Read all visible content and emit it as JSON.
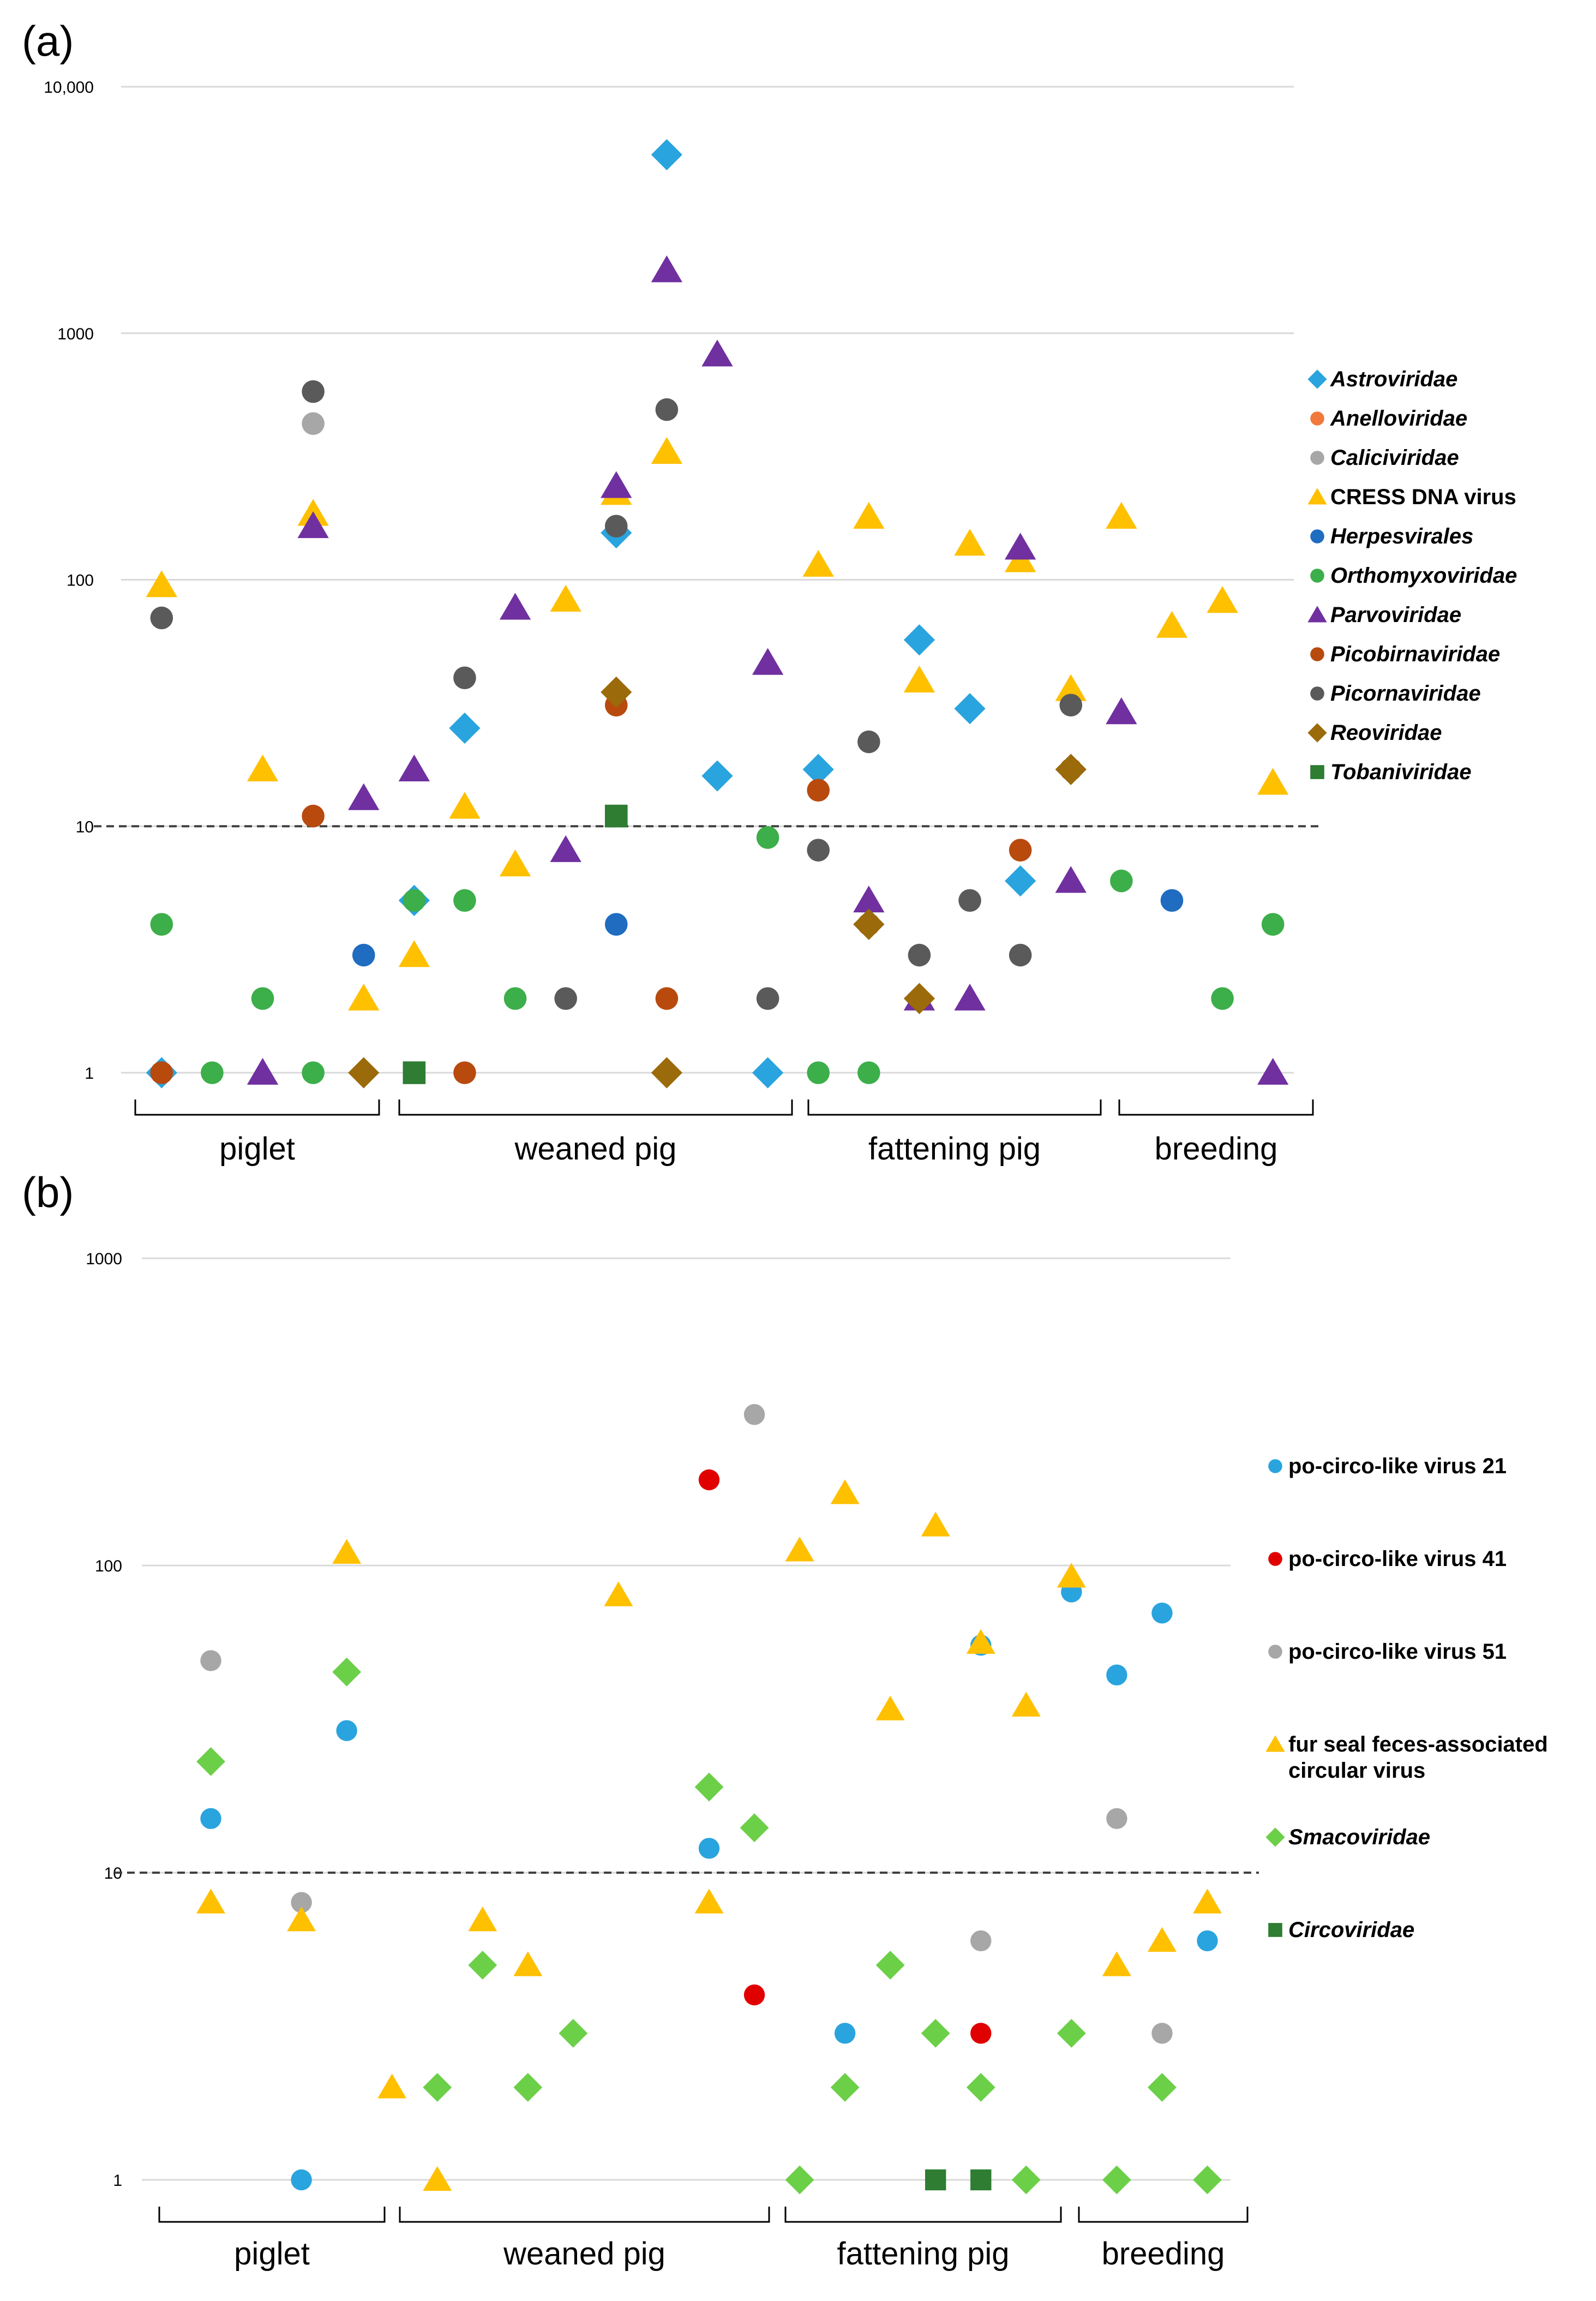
{
  "colors": {
    "astro": "#2aa4de",
    "anello": "#f07a3c",
    "calici": "#a7a7a7",
    "cress": "#ffc000",
    "herpes": "#1f6cc0",
    "ortho": "#3cae4a",
    "parvo": "#7030a0",
    "picobirna": "#b84a0e",
    "picorna": "#5a5a5a",
    "reo": "#9b6a0a",
    "tobani": "#2e7d32",
    "circo21": "#2aa4de",
    "circo41": "#e00000",
    "circo51": "#a7a7a7",
    "furseal": "#ffc000",
    "smaco": "#6ccf48",
    "circov": "#2e7d32"
  },
  "chart_data": [
    {
      "type": "scatter",
      "panel_label": "(a)",
      "yscale": "log",
      "ylim": [
        1,
        10000
      ],
      "yticks": [
        1,
        10,
        100,
        1000,
        10000
      ],
      "ytick_labels": [
        "1",
        "10",
        "100",
        "1000",
        "10,000"
      ],
      "threshold": 10,
      "xlim": [
        0.5,
        23.5
      ],
      "groups": [
        {
          "label": "piglet",
          "from": 1,
          "to": 5
        },
        {
          "label": "weaned pig",
          "from": 6,
          "to": 13
        },
        {
          "label": "fattening pig",
          "from": 14,
          "to": 19
        },
        {
          "label": "breeding",
          "from": 20,
          "to": 23
        }
      ],
      "series": [
        {
          "name": "Astroviridae",
          "italic": true,
          "marker": "diamond",
          "color": "astro",
          "points": [
            [
              1,
              1
            ],
            [
              6,
              5
            ],
            [
              7,
              25
            ],
            [
              10,
              155
            ],
            [
              11,
              5300
            ],
            [
              12,
              16
            ],
            [
              13,
              1
            ],
            [
              14,
              17
            ],
            [
              15,
              4
            ],
            [
              16,
              57
            ],
            [
              17,
              30
            ],
            [
              18,
              6
            ],
            [
              19,
              17
            ]
          ]
        },
        {
          "name": "Anelloviridae",
          "italic": true,
          "marker": "circle",
          "color": "anello",
          "points": []
        },
        {
          "name": "Caliciviridae",
          "italic": true,
          "marker": "circle",
          "color": "calici",
          "points": [
            [
              4,
              430
            ]
          ]
        },
        {
          "name": "CRESS DNA virus",
          "italic": false,
          "marker": "triangle",
          "color": "cress",
          "points": [
            [
              1,
              95
            ],
            [
              3,
              17
            ],
            [
              4,
              185
            ],
            [
              5,
              2
            ],
            [
              6,
              3
            ],
            [
              7,
              12
            ],
            [
              8,
              7
            ],
            [
              9,
              83
            ],
            [
              10,
              225
            ],
            [
              11,
              330
            ],
            [
              14,
              115
            ],
            [
              15,
              180
            ],
            [
              16,
              39
            ],
            [
              17,
              140
            ],
            [
              18,
              120
            ],
            [
              19,
              36
            ],
            [
              20,
              180
            ],
            [
              21,
              65
            ],
            [
              22,
              82
            ],
            [
              23,
              15
            ]
          ]
        },
        {
          "name": "Herpesvirales",
          "italic": true,
          "marker": "circle",
          "color": "herpes",
          "points": [
            [
              5,
              3
            ],
            [
              10,
              4
            ],
            [
              21,
              5
            ]
          ]
        },
        {
          "name": "Orthomyxoviridae",
          "italic": true,
          "marker": "circle",
          "color": "ortho",
          "points": [
            [
              1,
              4
            ],
            [
              2,
              1
            ],
            [
              3,
              2
            ],
            [
              4,
              1
            ],
            [
              6,
              5
            ],
            [
              7,
              5
            ],
            [
              8,
              2
            ],
            [
              13,
              9
            ],
            [
              14,
              1
            ],
            [
              15,
              1
            ],
            [
              20,
              6
            ],
            [
              22,
              2
            ],
            [
              23,
              4
            ]
          ]
        },
        {
          "name": "Parvoviridae",
          "italic": true,
          "marker": "triangle",
          "color": "parvo",
          "points": [
            [
              3,
              1
            ],
            [
              4,
              165
            ],
            [
              5,
              13
            ],
            [
              6,
              17
            ],
            [
              8,
              77
            ],
            [
              9,
              8
            ],
            [
              10,
              240
            ],
            [
              11,
              1800
            ],
            [
              12,
              820
            ],
            [
              13,
              46
            ],
            [
              15,
              5
            ],
            [
              16,
              2
            ],
            [
              17,
              2
            ],
            [
              18,
              135
            ],
            [
              19,
              6
            ],
            [
              20,
              29
            ],
            [
              23,
              1
            ]
          ]
        },
        {
          "name": "Picobirnaviridae",
          "italic": true,
          "marker": "circle",
          "color": "picobirna",
          "points": [
            [
              1,
              1
            ],
            [
              4,
              11
            ],
            [
              7,
              1
            ],
            [
              10,
              31
            ],
            [
              11,
              2
            ],
            [
              14,
              14
            ],
            [
              15,
              4
            ],
            [
              18,
              8
            ],
            [
              19,
              17
            ]
          ]
        },
        {
          "name": "Picornaviridae",
          "italic": true,
          "marker": "circle",
          "color": "picorna",
          "points": [
            [
              1,
              70
            ],
            [
              4,
              580
            ],
            [
              7,
              40
            ],
            [
              9,
              2
            ],
            [
              10,
              165
            ],
            [
              11,
              490
            ],
            [
              13,
              2
            ],
            [
              14,
              8
            ],
            [
              15,
              22
            ],
            [
              16,
              3
            ],
            [
              17,
              5
            ],
            [
              18,
              3
            ],
            [
              19,
              31
            ]
          ]
        },
        {
          "name": "Reoviridae",
          "italic": true,
          "marker": "diamond",
          "color": "reo",
          "points": [
            [
              5,
              1
            ],
            [
              10,
              35
            ],
            [
              11,
              1
            ],
            [
              15,
              4
            ],
            [
              16,
              2
            ],
            [
              19,
              17
            ]
          ]
        },
        {
          "name": "Tobaniviridae",
          "italic": true,
          "marker": "square",
          "color": "tobani",
          "points": [
            [
              6,
              1
            ],
            [
              10,
              11
            ]
          ]
        }
      ]
    },
    {
      "type": "scatter",
      "panel_label": "(b)",
      "yscale": "log",
      "ylim": [
        1,
        1000
      ],
      "yticks": [
        1,
        10,
        100,
        1000
      ],
      "ytick_labels": [
        "1",
        "10",
        "100",
        "1000"
      ],
      "threshold": 10,
      "xlim": [
        0.5,
        23.5
      ],
      "groups": [
        {
          "label": "piglet",
          "from": 1,
          "to": 5
        },
        {
          "label": "weaned pig",
          "from": 6,
          "to": 13
        },
        {
          "label": "fattening pig",
          "from": 14,
          "to": 19
        },
        {
          "label": "breeding",
          "from": 20,
          "to": 23
        }
      ],
      "series": [
        {
          "name": "po-circo-like virus 21",
          "italic": false,
          "marker": "circle",
          "color": "circo21",
          "points": [
            [
              1,
              15
            ],
            [
              3,
              1
            ],
            [
              4,
              29
            ],
            [
              12,
              12
            ],
            [
              15,
              3
            ],
            [
              18,
              55
            ],
            [
              20,
              82
            ],
            [
              21,
              44
            ],
            [
              22,
              70
            ],
            [
              23,
              6
            ]
          ]
        },
        {
          "name": "po-circo-like virus 41",
          "italic": false,
          "marker": "circle",
          "color": "circo41",
          "points": [
            [
              12,
              190
            ],
            [
              13,
              4
            ],
            [
              18,
              3
            ]
          ]
        },
        {
          "name": "po-circo-like virus 51",
          "italic": false,
          "marker": "circle",
          "color": "circo51",
          "points": [
            [
              1,
              49
            ],
            [
              3,
              8
            ],
            [
              13,
              310
            ],
            [
              18,
              6
            ],
            [
              21,
              15
            ],
            [
              22,
              3
            ]
          ]
        },
        {
          "name": "fur seal feces-associated circular virus",
          "lines": [
            "fur seal feces-associated",
            "circular virus"
          ],
          "italic": false,
          "marker": "triangle",
          "color": "furseal",
          "points": [
            [
              1,
              8
            ],
            [
              3,
              7
            ],
            [
              4,
              110
            ],
            [
              5,
              2
            ],
            [
              6,
              1
            ],
            [
              7,
              7
            ],
            [
              8,
              5
            ],
            [
              10,
              80
            ],
            [
              12,
              8
            ],
            [
              14,
              112
            ],
            [
              15,
              172
            ],
            [
              16,
              34
            ],
            [
              17,
              135
            ],
            [
              18,
              56
            ],
            [
              19,
              35
            ],
            [
              20,
              92
            ],
            [
              21,
              5
            ],
            [
              22,
              6
            ],
            [
              23,
              8
            ]
          ]
        },
        {
          "name": "Smacoviridae",
          "italic": true,
          "marker": "diamond",
          "color": "smaco",
          "points": [
            [
              1,
              23
            ],
            [
              4,
              45
            ],
            [
              6,
              2
            ],
            [
              7,
              5
            ],
            [
              8,
              2
            ],
            [
              9,
              3
            ],
            [
              12,
              19
            ],
            [
              13,
              14
            ],
            [
              14,
              1
            ],
            [
              15,
              2
            ],
            [
              16,
              5
            ],
            [
              17,
              3
            ],
            [
              18,
              2
            ],
            [
              19,
              1
            ],
            [
              20,
              3
            ],
            [
              21,
              1
            ],
            [
              22,
              2
            ],
            [
              23,
              1
            ]
          ]
        },
        {
          "name": "Circoviridae",
          "italic": true,
          "marker": "square",
          "color": "circov",
          "points": [
            [
              17,
              1
            ],
            [
              18,
              1
            ]
          ]
        }
      ]
    }
  ]
}
